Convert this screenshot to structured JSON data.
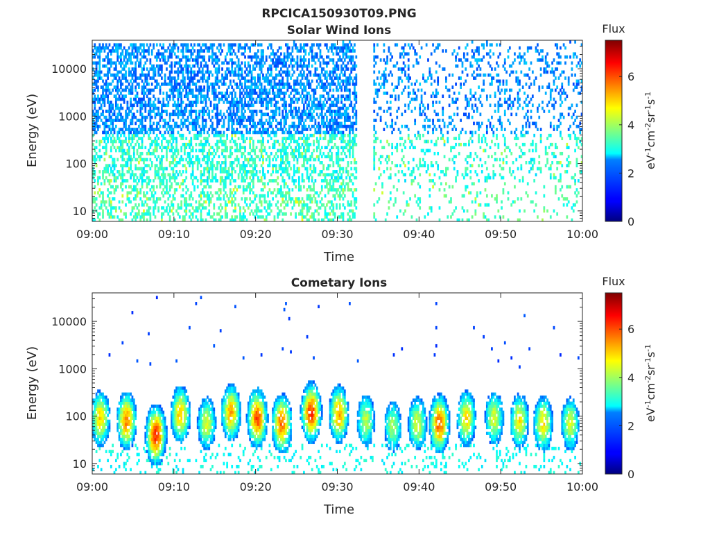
{
  "figure": {
    "title": "RPCICA150930T09.PNG"
  },
  "colors": {
    "background": "#ffffff",
    "axis": "#262626",
    "text": "#262626",
    "colormap": "jet"
  },
  "chart_data": [
    {
      "type": "heatmap",
      "title": "Solar Wind Ions",
      "xlabel": "Time",
      "ylabel": "Energy (eV)",
      "x_ticks": [
        "09:00",
        "09:10",
        "09:20",
        "09:30",
        "09:40",
        "09:50",
        "10:00"
      ],
      "x_range_minutes": [
        0,
        60
      ],
      "y_scale": "log",
      "y_range_eV": [
        6,
        40000
      ],
      "y_ticks": [
        10,
        100,
        1000,
        10000
      ],
      "y_tick_labels": [
        "10",
        "100",
        "1000",
        "10000"
      ],
      "grid": false,
      "colorbar": {
        "title": "Flux",
        "unit_label": "eV-1cm-2sr-1s-1",
        "range": [
          0,
          7.5
        ],
        "ticks": [
          0,
          2,
          4,
          6
        ],
        "tick_labels": [
          "0",
          "2",
          "4",
          "6"
        ]
      },
      "data_gap_minutes": [
        32.3,
        34.5
      ],
      "approx_flux_levels_log10": {
        "energy_10000_eV": 1.6,
        "energy_1000_eV": 1.8,
        "energy_100_eV": 2.8,
        "energy_10_eV": 3.0
      }
    },
    {
      "type": "heatmap",
      "title": "Cometary Ions",
      "xlabel": "Time",
      "ylabel": "Energy (eV)",
      "x_ticks": [
        "09:00",
        "09:10",
        "09:20",
        "09:30",
        "09:40",
        "09:50",
        "10:00"
      ],
      "x_range_minutes": [
        0,
        60
      ],
      "y_scale": "log",
      "y_range_eV": [
        6,
        40000
      ],
      "y_ticks": [
        10,
        100,
        1000,
        10000
      ],
      "y_tick_labels": [
        "10",
        "100",
        "1000",
        "10000"
      ],
      "grid": false,
      "colorbar": {
        "title": "Flux",
        "unit_label": "eV-1cm-2sr-1s-1",
        "range": [
          0,
          7.5
        ],
        "ticks": [
          0,
          2,
          4,
          6
        ],
        "tick_labels": [
          "0",
          "2",
          "4",
          "6"
        ]
      },
      "bursts": [
        {
          "t_min": 1.0,
          "peak_energy_eV": 90,
          "peak_flux": 5.0
        },
        {
          "t_min": 4.2,
          "peak_energy_eV": 80,
          "peak_flux": 5.6
        },
        {
          "t_min": 7.8,
          "peak_energy_eV": 40,
          "peak_flux": 6.3
        },
        {
          "t_min": 10.8,
          "peak_energy_eV": 110,
          "peak_flux": 5.2
        },
        {
          "t_min": 14.0,
          "peak_energy_eV": 70,
          "peak_flux": 4.4
        },
        {
          "t_min": 17.0,
          "peak_energy_eV": 120,
          "peak_flux": 5.3
        },
        {
          "t_min": 20.2,
          "peak_energy_eV": 90,
          "peak_flux": 6.0
        },
        {
          "t_min": 23.2,
          "peak_energy_eV": 70,
          "peak_flux": 5.8
        },
        {
          "t_min": 26.8,
          "peak_energy_eV": 120,
          "peak_flux": 6.2
        },
        {
          "t_min": 30.2,
          "peak_energy_eV": 110,
          "peak_flux": 5.4
        },
        {
          "t_min": 33.5,
          "peak_energy_eV": 80,
          "peak_flux": 4.2
        },
        {
          "t_min": 36.8,
          "peak_energy_eV": 60,
          "peak_flux": 4.0
        },
        {
          "t_min": 39.8,
          "peak_energy_eV": 70,
          "peak_flux": 4.5
        },
        {
          "t_min": 42.5,
          "peak_energy_eV": 70,
          "peak_flux": 5.9
        },
        {
          "t_min": 45.8,
          "peak_energy_eV": 90,
          "peak_flux": 4.9
        },
        {
          "t_min": 49.2,
          "peak_energy_eV": 90,
          "peak_flux": 4.5
        },
        {
          "t_min": 52.3,
          "peak_energy_eV": 80,
          "peak_flux": 4.8
        },
        {
          "t_min": 55.2,
          "peak_energy_eV": 70,
          "peak_flux": 4.9
        },
        {
          "t_min": 58.5,
          "peak_energy_eV": 70,
          "peak_flux": 4.4
        }
      ]
    }
  ]
}
